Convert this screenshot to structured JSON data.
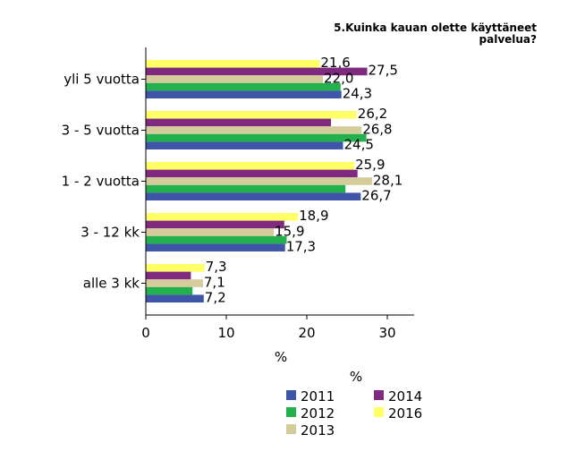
{
  "chart_data": {
    "type": "bar",
    "orientation": "horizontal",
    "title_lines": [
      "5.Kuinka kauan olette käyttäneet",
      "palvelua?"
    ],
    "categories": [
      "yli 5 vuotta",
      "3 - 5 vuotta",
      "1 - 2 vuotta",
      "3 - 12 kk",
      "alle 3 kk"
    ],
    "series": [
      {
        "name": "2016",
        "color": "#ffff66",
        "values": [
          21.6,
          26.2,
          25.9,
          18.9,
          7.3
        ],
        "labels": [
          "21,6",
          "26,2",
          "25,9",
          "18,9",
          "7,3"
        ]
      },
      {
        "name": "2014",
        "color": "#7f2a7f",
        "values": [
          27.5,
          23.0,
          26.3,
          17.2,
          5.6
        ],
        "labels": [
          "27,5",
          "",
          "",
          "",
          ""
        ]
      },
      {
        "name": "2013",
        "color": "#d4cc9a",
        "values": [
          22.0,
          26.8,
          28.1,
          15.9,
          7.1
        ],
        "labels": [
          "22,0",
          "26,8",
          "28,1",
          "15,9",
          "7,1"
        ]
      },
      {
        "name": "2012",
        "color": "#22b14c",
        "values": [
          24.2,
          27.4,
          24.8,
          17.5,
          5.8
        ],
        "labels": [
          "",
          "",
          "",
          "",
          ""
        ]
      },
      {
        "name": "2011",
        "color": "#3f56a8",
        "values": [
          24.3,
          24.5,
          26.7,
          17.3,
          7.2
        ],
        "labels": [
          "24,3",
          "24,5",
          "26,7",
          "17,3",
          "7,2"
        ]
      }
    ],
    "xlabel": "%",
    "legend_title": "%",
    "xlim": [
      0,
      33
    ],
    "xticks": [
      "0",
      "10",
      "20",
      "30"
    ],
    "legend": [
      {
        "name": "2011",
        "color": "#3f56a8"
      },
      {
        "name": "2014",
        "color": "#7f2a7f"
      },
      {
        "name": "2012",
        "color": "#22b14c"
      },
      {
        "name": "2016",
        "color": "#ffff66"
      },
      {
        "name": "2013",
        "color": "#d4cc9a"
      }
    ],
    "grid": false,
    "legend_position": "bottom"
  }
}
